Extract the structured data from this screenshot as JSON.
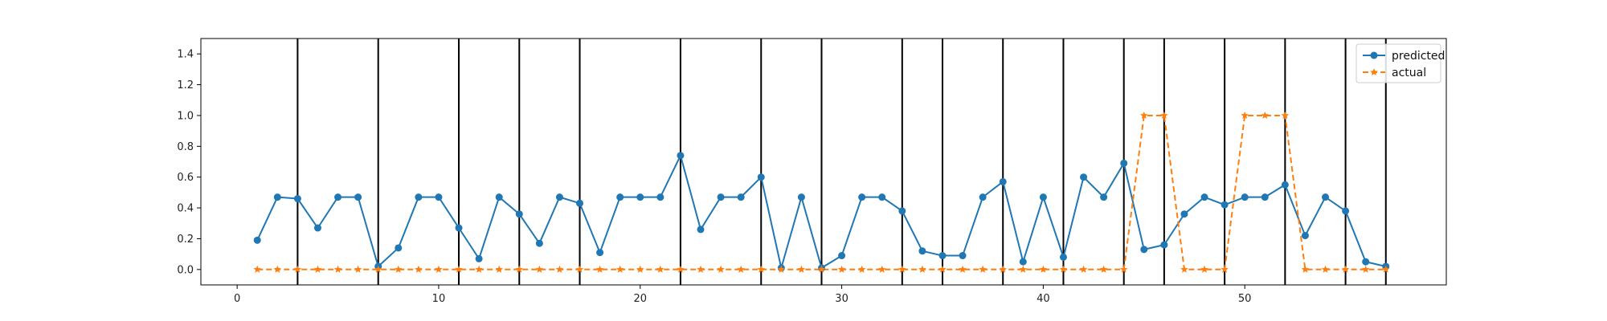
{
  "chart_data": {
    "type": "line",
    "title": "",
    "xlabel": "",
    "ylabel": "",
    "xlim": [
      -1.8,
      60.0
    ],
    "ylim": [
      -0.1,
      1.5
    ],
    "x_ticks": [
      0,
      10,
      20,
      30,
      40,
      50
    ],
    "y_ticks": [
      0.0,
      0.2,
      0.4,
      0.6,
      0.8,
      1.0,
      1.2,
      1.4
    ],
    "x_tick_labels": [
      "0",
      "10",
      "20",
      "30",
      "40",
      "50"
    ],
    "y_tick_labels": [
      "0.0",
      "0.2",
      "0.4",
      "0.6",
      "0.8",
      "1.0",
      "1.2",
      "1.4"
    ],
    "grid": false,
    "legend_position": "top-right",
    "vertical_lines_x": [
      3,
      7,
      11,
      14,
      17,
      22,
      26,
      29,
      33,
      35,
      38,
      41,
      44,
      46,
      49,
      52,
      55,
      57
    ],
    "x": [
      1,
      2,
      3,
      4,
      5,
      6,
      7,
      8,
      9,
      10,
      11,
      12,
      13,
      14,
      15,
      16,
      17,
      18,
      19,
      20,
      21,
      22,
      23,
      24,
      25,
      26,
      27,
      28,
      29,
      30,
      31,
      32,
      33,
      34,
      35,
      36,
      37,
      38,
      39,
      40,
      41,
      42,
      43,
      44,
      45,
      46,
      47,
      48,
      49,
      50,
      51,
      52,
      53,
      54,
      55,
      56,
      57
    ],
    "series": [
      {
        "name": "predicted",
        "color": "#1f77b4",
        "marker": "circle",
        "line_style": "solid",
        "values": [
          0.19,
          0.47,
          0.46,
          0.27,
          0.47,
          0.47,
          0.02,
          0.14,
          0.47,
          0.47,
          0.27,
          0.07,
          0.47,
          0.36,
          0.17,
          0.47,
          0.43,
          0.11,
          0.47,
          0.47,
          0.47,
          0.74,
          0.26,
          0.47,
          0.47,
          0.6,
          0.01,
          0.47,
          0.01,
          0.09,
          0.47,
          0.47,
          0.38,
          0.12,
          0.09,
          0.09,
          0.47,
          0.57,
          0.05,
          0.47,
          0.08,
          0.6,
          0.47,
          0.69,
          0.13,
          0.16,
          0.36,
          0.47,
          0.42,
          0.47,
          0.47,
          0.55,
          0.22,
          0.47,
          0.38,
          0.05,
          0.02
        ]
      },
      {
        "name": "actual",
        "color": "#ff7f0e",
        "marker": "star",
        "line_style": "dashed",
        "values": [
          0,
          0,
          0,
          0,
          0,
          0,
          0,
          0,
          0,
          0,
          0,
          0,
          0,
          0,
          0,
          0,
          0,
          0,
          0,
          0,
          0,
          0,
          0,
          0,
          0,
          0,
          0,
          0,
          0,
          0,
          0,
          0,
          0,
          0,
          0,
          0,
          0,
          0,
          0,
          0,
          0,
          0,
          0,
          0,
          1,
          1,
          0,
          0,
          0,
          1,
          1,
          1,
          0,
          0,
          0,
          0,
          0
        ]
      }
    ]
  }
}
